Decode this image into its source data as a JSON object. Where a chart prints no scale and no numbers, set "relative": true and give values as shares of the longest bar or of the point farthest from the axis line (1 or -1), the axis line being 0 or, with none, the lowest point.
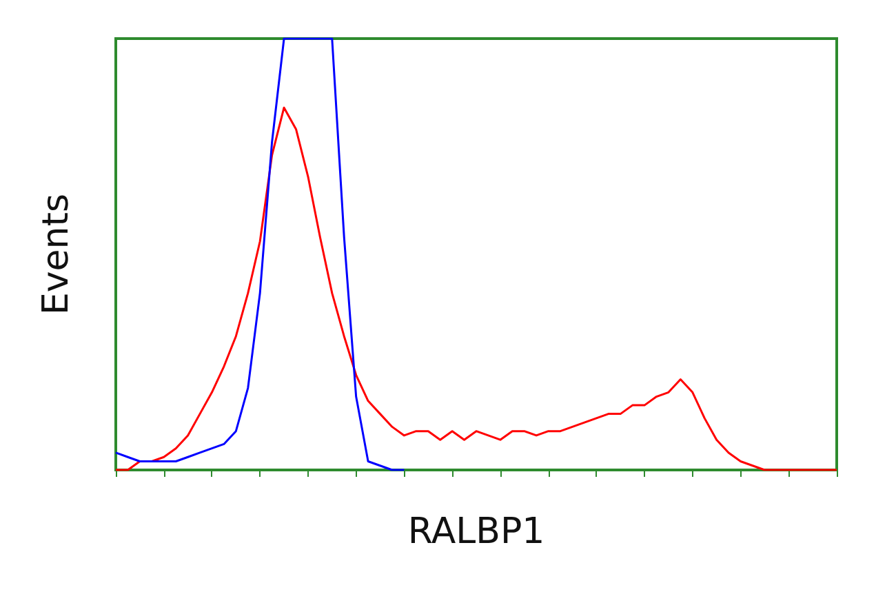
{
  "chart_data": {
    "type": "line",
    "relative": true,
    "xlabel": "RALBP1",
    "ylabel": "Events",
    "grid": false,
    "line_style": "solid",
    "categories": [
      null,
      null,
      null,
      null,
      null,
      null,
      null,
      null,
      null,
      null,
      null,
      null,
      null,
      null,
      null,
      null,
      null,
      null,
      null,
      null,
      null,
      null,
      null,
      null,
      null,
      null,
      null,
      null,
      null,
      null,
      null,
      null,
      null,
      null,
      null,
      null,
      null,
      null,
      null,
      null,
      null,
      null,
      null,
      null,
      null,
      null,
      null,
      null,
      null,
      null,
      null,
      null,
      null,
      null,
      null,
      null,
      null,
      null,
      null,
      null,
      null
    ],
    "series": [
      {
        "color": "#ff0000",
        "values": [
          0,
          0,
          0.02,
          0.02,
          0.03,
          0.05,
          0.08,
          0.13,
          0.18,
          0.24,
          0.31,
          0.41,
          0.53,
          0.73,
          0.84,
          0.79,
          0.68,
          0.54,
          0.41,
          0.31,
          0.22,
          0.16,
          0.13,
          0.1,
          0.08,
          0.09,
          0.09,
          0.07,
          0.09,
          0.07,
          0.09,
          0.08,
          0.07,
          0.09,
          0.09,
          0.08,
          0.09,
          0.09,
          0.1,
          0.11,
          0.12,
          0.13,
          0.13,
          0.15,
          0.15,
          0.17,
          0.18,
          0.21,
          0.18,
          0.12,
          0.07,
          0.04,
          0.02,
          0.01,
          0,
          0,
          0,
          0,
          0,
          0,
          0
        ]
      },
      {
        "color": "#0000ff",
        "values": [
          0.04,
          0.03,
          0.02,
          0.02,
          0.02,
          0.02,
          0.03,
          0.04,
          0.05,
          0.06,
          0.09,
          0.19,
          0.41,
          0.76,
          1,
          1,
          1,
          1,
          1,
          0.54,
          0.17,
          0.02,
          0.01,
          0,
          0,
          null,
          null,
          null,
          null,
          null,
          null,
          null,
          null,
          null,
          null,
          null,
          null,
          null,
          null,
          null,
          null,
          null,
          null,
          null,
          null,
          null,
          null,
          null,
          null,
          null,
          null,
          null,
          null,
          null,
          null,
          null,
          null,
          null,
          null,
          null,
          null
        ]
      }
    ]
  }
}
